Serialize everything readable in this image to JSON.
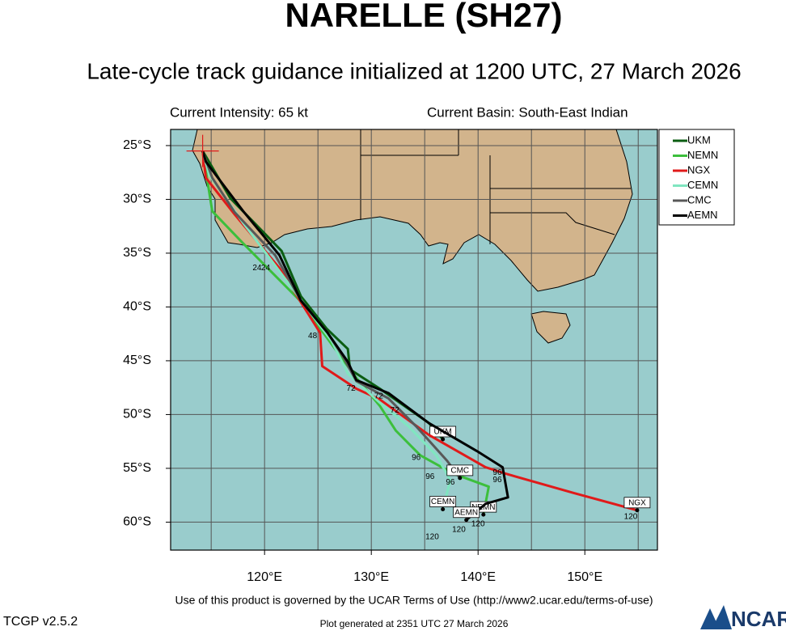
{
  "chart_data": {
    "type": "track-map",
    "title": "NARELLE (SH27)",
    "subtitle": "Late-cycle track guidance initialized at 1200 UTC, 27 March 2026",
    "intensity": "Current Intensity: 65 kt",
    "basin": "Current Basin: South-East Indian",
    "xlim": [
      111.2,
      156.8
    ],
    "ylim": [
      -62.6,
      -23.5
    ],
    "xticks": [
      {
        "value": 120,
        "label": "120°E"
      },
      {
        "value": 130,
        "label": "130°E"
      },
      {
        "value": 140,
        "label": "140°E"
      },
      {
        "value": 150,
        "label": "150°E"
      }
    ],
    "xminor": [
      115,
      125,
      135,
      145,
      155
    ],
    "yticks": [
      {
        "value": -25,
        "label": "25°S"
      },
      {
        "value": -30,
        "label": "30°S"
      },
      {
        "value": -35,
        "label": "35°S"
      },
      {
        "value": -40,
        "label": "40°S"
      },
      {
        "value": -45,
        "label": "45°S"
      },
      {
        "value": -50,
        "label": "50°S"
      },
      {
        "value": -55,
        "label": "55°S"
      },
      {
        "value": -60,
        "label": "60°S"
      }
    ],
    "grid": true,
    "current_position": {
      "x": 114.2,
      "y": -25.5,
      "color": "#e01a1a"
    },
    "series": [
      {
        "name": "UKM",
        "color": "#0b5d12",
        "x": [
          114.2,
          116.8,
          121.6,
          123.4,
          125.8,
          127.8,
          128.0,
          130.8,
          135.4,
          136.7
        ],
        "y": [
          -25.5,
          -29.9,
          -34.8,
          -39.0,
          -42.0,
          -43.9,
          -45.8,
          -47.6,
          -50.8,
          -52.3
        ]
      },
      {
        "name": "NEMN",
        "color": "#3cbf3c",
        "x": [
          114.2,
          115.1,
          118.0,
          123.3,
          125.5,
          128.6,
          130.8,
          132.3,
          134.6,
          137.7,
          141.0,
          140.5
        ],
        "y": [
          -25.5,
          -31.1,
          -34.1,
          -39.4,
          -42.4,
          -46.6,
          -49.2,
          -51.5,
          -53.8,
          -55.5,
          -56.7,
          -59.3
        ]
      },
      {
        "name": "NGX",
        "color": "#e01a1a",
        "x": [
          114.2,
          114.5,
          117.2,
          121.4,
          123.3,
          125.2,
          125.4,
          128.6,
          130.8,
          135.4,
          140.7,
          142.6,
          149.0,
          154.9
        ],
        "y": [
          -25.5,
          -28.0,
          -31.4,
          -36.4,
          -39.4,
          -42.4,
          -45.5,
          -47.6,
          -48.6,
          -51.9,
          -54.9,
          -55.5,
          -57.3,
          -58.9
        ]
      },
      {
        "name": "CEMN",
        "color": "#80e6c0",
        "x": [
          114.2,
          114.8,
          118.0,
          123.3,
          126.3,
          127.8,
          130.8,
          133.5,
          136.1,
          137.4,
          136.7
        ],
        "y": [
          -25.5,
          -27.7,
          -32.2,
          -39.2,
          -43.2,
          -46.2,
          -48.9,
          -51.1,
          -53.8,
          -56.1,
          -58.8
        ]
      },
      {
        "name": "CMC",
        "color": "#585858",
        "x": [
          114.2,
          115.1,
          117.2,
          121.0,
          123.4,
          125.9,
          127.4,
          128.6,
          131.6,
          134.2,
          137.1,
          138.3
        ],
        "y": [
          -25.5,
          -28.0,
          -31.2,
          -35.2,
          -39.4,
          -42.4,
          -44.7,
          -46.9,
          -48.5,
          -51.1,
          -54.3,
          -55.9
        ]
      },
      {
        "name": "AEMN",
        "color": "#000000",
        "x": [
          114.2,
          114.5,
          118.0,
          121.4,
          123.4,
          125.9,
          127.8,
          128.6,
          131.6,
          135.4,
          139.9,
          142.3,
          142.8,
          140.7,
          138.9
        ],
        "y": [
          -25.5,
          -26.5,
          -31.1,
          -35.2,
          -39.4,
          -42.4,
          -45.1,
          -46.8,
          -48.0,
          -50.8,
          -53.4,
          -54.9,
          -57.7,
          -58.3,
          -59.8
        ]
      }
    ],
    "annotations": [
      {
        "text": "24",
        "x": 119.3,
        "y": -36.4
      },
      {
        "text": "24",
        "x": 120.1,
        "y": -36.4
      },
      {
        "text": "48",
        "x": 124.5,
        "y": -42.7
      },
      {
        "text": "72",
        "x": 128.1,
        "y": -47.6
      },
      {
        "text": "72",
        "x": 130.7,
        "y": -48.3
      },
      {
        "text": "72",
        "x": 132.2,
        "y": -49.6
      },
      {
        "text": "96",
        "x": 134.2,
        "y": -54.0
      },
      {
        "text": "96",
        "x": 135.5,
        "y": -55.8
      },
      {
        "text": "96",
        "x": 137.4,
        "y": -56.3
      },
      {
        "text": "96",
        "x": 141.8,
        "y": -55.4
      },
      {
        "text": "96",
        "x": 141.8,
        "y": -56.1
      },
      {
        "text": "120",
        "x": 135.7,
        "y": -61.4
      },
      {
        "text": "120",
        "x": 138.2,
        "y": -60.7
      },
      {
        "text": "120",
        "x": 140.0,
        "y": -60.2
      },
      {
        "text": "120",
        "x": 154.3,
        "y": -59.5
      }
    ]
  },
  "footer": {
    "terms": "Use of this product is governed by the UCAR Terms of Use (http://www2.ucar.edu/terms-of-use)",
    "version": "TCGP v2.5.2",
    "generated": "Plot generated at 2351 UTC  27 March 2026",
    "logo": "NCAR"
  }
}
